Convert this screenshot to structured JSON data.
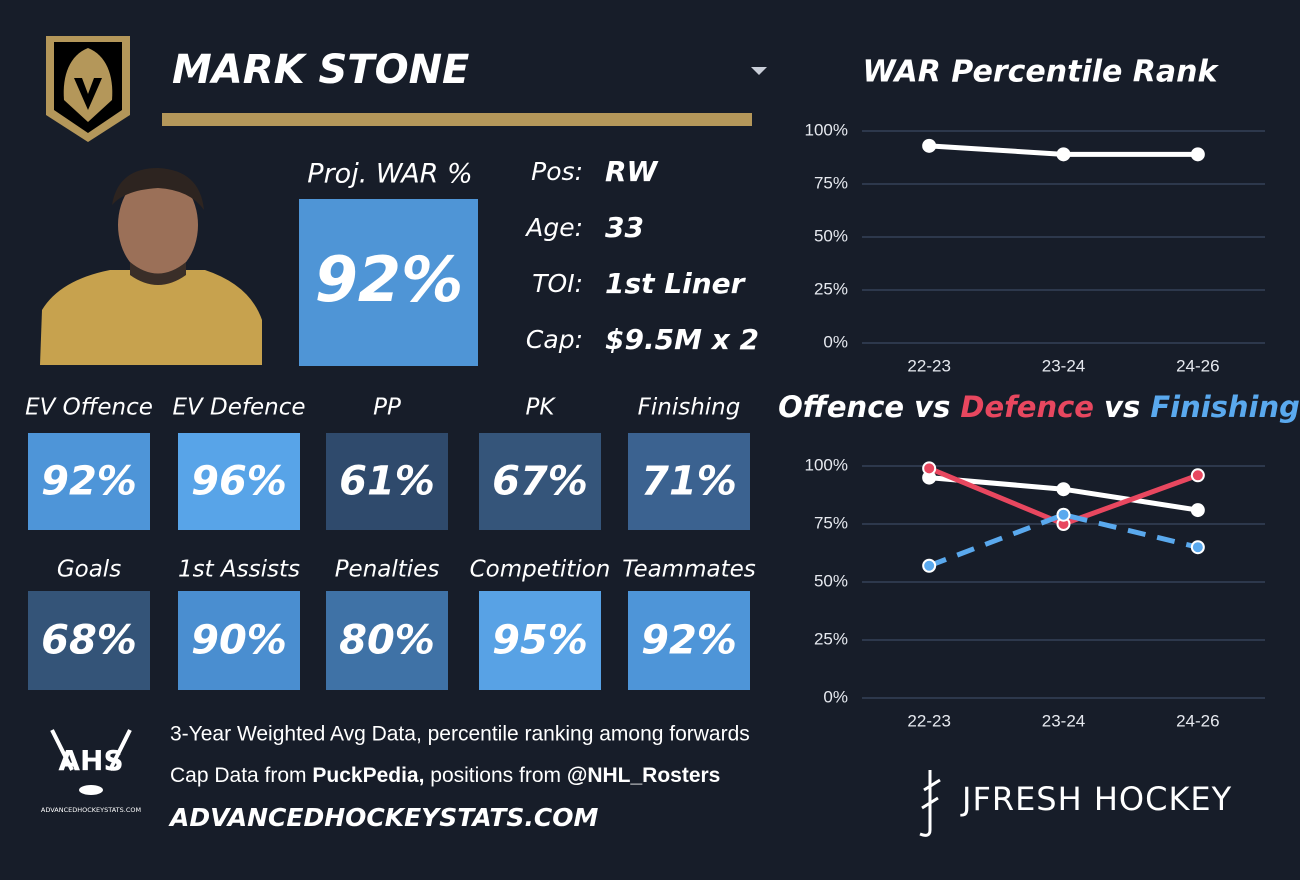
{
  "header": {
    "name": "MARK STONE"
  },
  "profile": {
    "proj_label": "Proj. WAR %",
    "proj_value": "92%",
    "proj_color": "#4f95d6",
    "rows": [
      {
        "label": "Pos:",
        "value": "RW"
      },
      {
        "label": "Age:",
        "value": "33"
      },
      {
        "label": "TOI:",
        "value": "1st Liner"
      },
      {
        "label": "Cap:",
        "value": "$9.5M x 2"
      }
    ]
  },
  "tiles": [
    [
      {
        "label": "EV Offence",
        "value": "92%",
        "color": "#4e95d8"
      },
      {
        "label": "EV Defence",
        "value": "96%",
        "color": "#58a4e8"
      },
      {
        "label": "PP",
        "value": "61%",
        "color": "#2f4a6c"
      },
      {
        "label": "PK",
        "value": "67%",
        "color": "#35557a"
      },
      {
        "label": "Finishing",
        "value": "71%",
        "color": "#3b6290"
      }
    ],
    [
      {
        "label": "Goals",
        "value": "68%",
        "color": "#345478"
      },
      {
        "label": "1st Assists",
        "value": "90%",
        "color": "#4a8ed0"
      },
      {
        "label": "Penalties",
        "value": "80%",
        "color": "#3f72a6"
      },
      {
        "label": "Competition",
        "value": "95%",
        "color": "#58a2e5"
      },
      {
        "label": "Teammates",
        "value": "92%",
        "color": "#4e95d8"
      }
    ]
  ],
  "footer": {
    "line1": "3-Year Weighted Avg Data, percentile ranking among forwards",
    "line2": [
      "Cap Data from ",
      "PuckPedia,",
      " positions from ",
      "@NHL_Rosters"
    ],
    "site": "ADVANCEDHOCKEYSTATS.COM",
    "ahs_logo": {
      "text": "AHS",
      "caption": "ADVANCEDHOCKEYSTATS.COM"
    },
    "brand": "JFRESH HOCKEY"
  },
  "chart_data": [
    {
      "type": "line",
      "title": "WAR Percentile Rank",
      "categories": [
        "22-23",
        "23-24",
        "24-26"
      ],
      "values": [
        93,
        89,
        89
      ],
      "color": "#ffffff",
      "ylim": [
        0,
        100
      ],
      "yticks": [
        {
          "value": 0,
          "label": "0%"
        },
        {
          "value": 25,
          "label": "25%"
        },
        {
          "value": 50,
          "label": "50%"
        },
        {
          "value": 75,
          "label": "75%"
        },
        {
          "value": 100,
          "label": "100%"
        }
      ],
      "grid": true
    },
    {
      "type": "line",
      "title_joiner": "vs",
      "categories": [
        "22-23",
        "23-24",
        "24-26"
      ],
      "series": [
        {
          "name": "Offence",
          "color": "#ffffff",
          "values": [
            95,
            90,
            81
          ]
        },
        {
          "name": "Defence",
          "color": "#e8475f",
          "values": [
            99,
            75,
            96
          ]
        },
        {
          "name": "Finishing",
          "color": "#5aa9ee",
          "values": [
            57,
            79,
            65
          ],
          "line_style": "dashed"
        }
      ],
      "ylim": [
        0,
        100
      ],
      "yticks": [
        {
          "value": 0,
          "label": "0%"
        },
        {
          "value": 25,
          "label": "25%"
        },
        {
          "value": 50,
          "label": "50%"
        },
        {
          "value": 75,
          "label": "75%"
        },
        {
          "value": 100,
          "label": "100%"
        }
      ],
      "grid": true
    }
  ]
}
